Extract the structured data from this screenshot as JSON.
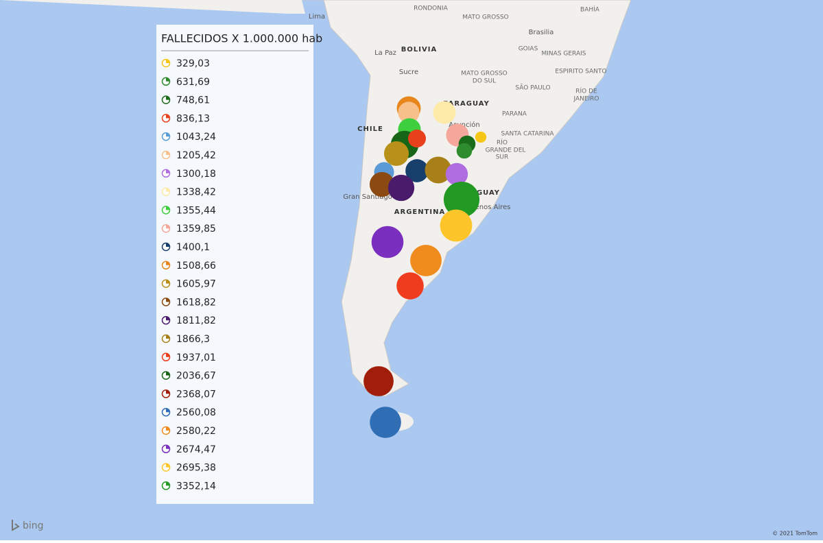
{
  "legend": {
    "title": "FALLECIDOS X 1.000.000 hab",
    "items": [
      {
        "value": 329.03,
        "label": "329,03",
        "color": "#f5c518"
      },
      {
        "value": 631.69,
        "label": "631,69",
        "color": "#2e8b2e"
      },
      {
        "value": 748.61,
        "label": "748,61",
        "color": "#1a6b1a"
      },
      {
        "value": 836.13,
        "label": "836,13",
        "color": "#e8401c"
      },
      {
        "value": 1043.24,
        "label": "1043,24",
        "color": "#5b9bd5"
      },
      {
        "value": 1205.42,
        "label": "1205,42",
        "color": "#f7c08a"
      },
      {
        "value": 1300.18,
        "label": "1300,18",
        "color": "#b06de0"
      },
      {
        "value": 1338.42,
        "label": "1338,42",
        "color": "#fde9a8"
      },
      {
        "value": 1355.44,
        "label": "1355,44",
        "color": "#3ecf3e"
      },
      {
        "value": 1359.85,
        "label": "1359,85",
        "color": "#f4a79a"
      },
      {
        "value": 1400.1,
        "label": "1400,1",
        "color": "#173f6b"
      },
      {
        "value": 1508.66,
        "label": "1508,66",
        "color": "#e8861c"
      },
      {
        "value": 1605.97,
        "label": "1605,97",
        "color": "#b8901a"
      },
      {
        "value": 1618.82,
        "label": "1618,82",
        "color": "#8b4a12"
      },
      {
        "value": 1811.82,
        "label": "1811,82",
        "color": "#4a1a6b"
      },
      {
        "value": 1866.3,
        "label": "1866,3",
        "color": "#a8801a"
      },
      {
        "value": 1937.01,
        "label": "1937,01",
        "color": "#f03c1e"
      },
      {
        "value": 2036.67,
        "label": "2036,67",
        "color": "#176617"
      },
      {
        "value": 2368.07,
        "label": "2368,07",
        "color": "#a01e0a"
      },
      {
        "value": 2560.08,
        "label": "2560,08",
        "color": "#2f6db5"
      },
      {
        "value": 2580.22,
        "label": "2580,22",
        "color": "#f08c1e"
      },
      {
        "value": 2674.47,
        "label": "2674,47",
        "color": "#7b2fbf"
      },
      {
        "value": 2695.38,
        "label": "2695,38",
        "color": "#fdc52a"
      },
      {
        "value": 3352.14,
        "label": "3352,14",
        "color": "#229922"
      }
    ]
  },
  "map_labels": [
    "Lima",
    "RONDONIA",
    "MATO GROSSO",
    "BAHÍA",
    "Brasilia",
    "GOIAS",
    "MINAS GERAIS",
    "La Paz",
    "BOLIVIA",
    "Sucre",
    "MATO GROSSO",
    "DO SUL",
    "ESPIRITO SANTO",
    "SÃO PAULO",
    "RÍO DE",
    "JANEIRO",
    "PARAGUAY",
    "Asunción",
    "PARANA",
    "CHILE",
    "SANTA CATARINA",
    "RÍO",
    "GRANDE DEL",
    "SUR",
    "Gran Santiago",
    "ARGENTINA",
    "GUAY",
    "Buenos Aires"
  ],
  "footer": {
    "logo": "bing",
    "copyright": "© 2021 TomTom"
  }
}
